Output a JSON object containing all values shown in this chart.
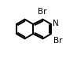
{
  "background": "#ffffff",
  "bond_color": "#000000",
  "bond_width": 1.4,
  "figsize": [
    0.98,
    0.74
  ],
  "dpi": 100,
  "xlim": [
    -0.05,
    1.05
  ],
  "ylim": [
    -0.05,
    1.05
  ],
  "label_N": {
    "text": "N",
    "fontsize": 7.5
  },
  "label_Br1": {
    "text": "Br",
    "fontsize": 7.5
  },
  "label_Br3": {
    "text": "Br",
    "fontsize": 7.5
  }
}
